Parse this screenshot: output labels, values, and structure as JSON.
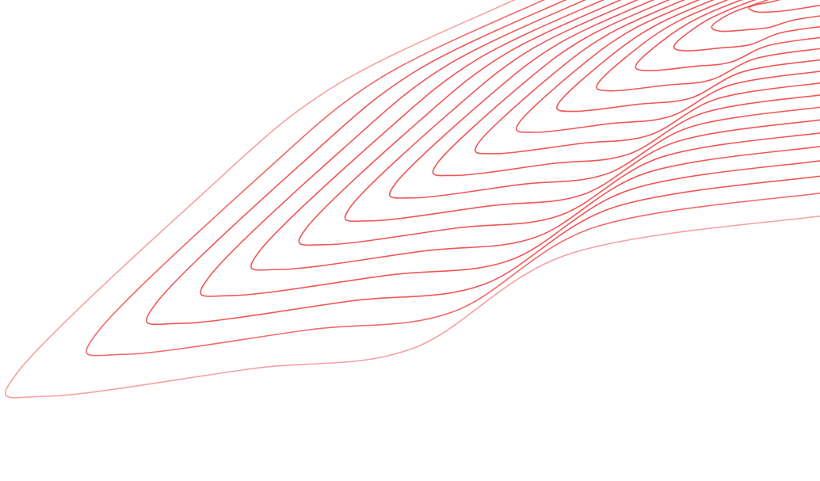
{
  "artwork": {
    "type": "topographic-contour-lines",
    "line_color": "#ef4444",
    "background_color": "#ffffff",
    "contour_count": 17
  }
}
